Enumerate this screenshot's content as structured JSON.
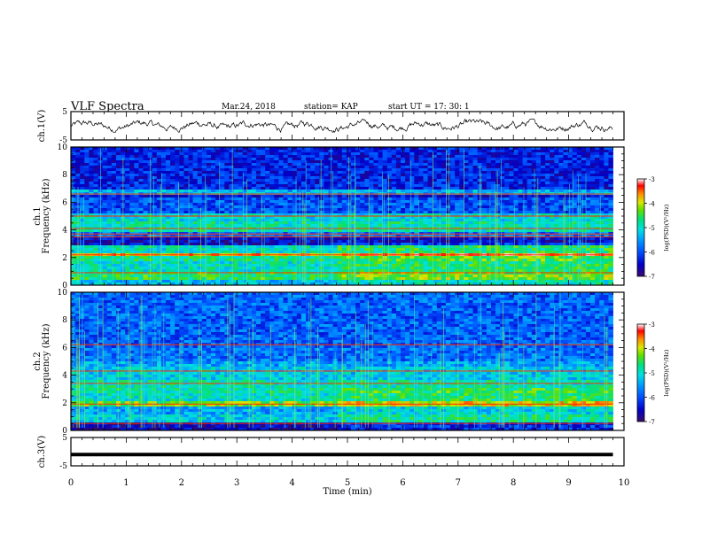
{
  "header": {
    "title": "VLF Spectra",
    "date": "Mar.24, 2018",
    "station": "station= KAP",
    "start": "start  UT  =   17: 30: 1"
  },
  "colorbar_colors": [
    "#3b0a6b",
    "#0000c8",
    "#0050ff",
    "#00a0ff",
    "#00e0e0",
    "#00e080",
    "#60e000",
    "#d8e800",
    "#ff8800",
    "#ff0000",
    "#ffffff"
  ],
  "chart_data": [
    {
      "type": "line",
      "name": "ch.1 waveform",
      "ylabel": "ch.1(V)",
      "ylim": [
        -5,
        5
      ],
      "yticks": [
        "5",
        "-5"
      ],
      "xlim": [
        0,
        10
      ],
      "note_values": "noisy waveform centred near 0 V, amplitude about +/-1.5 V"
    },
    {
      "type": "heatmap",
      "name": "ch.1 spectrogram",
      "ylabel": "ch.1\nFrequency (kHz)",
      "ylim": [
        0,
        10
      ],
      "yticks": [
        "0",
        "2",
        "4",
        "6",
        "8",
        "10"
      ],
      "xlim": [
        0,
        10
      ],
      "data_end_min": 9.8,
      "bands": [
        {
          "from": 0.0,
          "to": 0.4,
          "level": -5.3
        },
        {
          "from": 0.4,
          "to": 1.0,
          "level": -4.6
        },
        {
          "from": 1.0,
          "to": 1.7,
          "level": -5.0
        },
        {
          "from": 1.7,
          "to": 2.1,
          "level": -4.8
        },
        {
          "from": 2.1,
          "to": 2.4,
          "level": -3.8
        },
        {
          "from": 2.4,
          "to": 2.9,
          "level": -5.0
        },
        {
          "from": 2.9,
          "to": 3.4,
          "level": -6.5
        },
        {
          "from": 3.4,
          "to": 3.8,
          "level": -5.8
        },
        {
          "from": 3.8,
          "to": 4.6,
          "level": -4.9
        },
        {
          "from": 4.6,
          "to": 5.2,
          "level": -5.1
        },
        {
          "from": 5.2,
          "to": 6.3,
          "level": -6.0
        },
        {
          "from": 6.3,
          "to": 6.6,
          "level": -6.4
        },
        {
          "from": 6.6,
          "to": 7.0,
          "level": -5.4
        },
        {
          "from": 7.0,
          "to": 10.0,
          "level": -6.3
        }
      ],
      "lines": [
        0.9,
        2.2,
        3.5,
        3.7,
        4.1,
        5.0,
        6.6
      ],
      "colorbar": {
        "label": "log(PSD)(V²/Hz)",
        "range": [
          -7,
          -3
        ],
        "ticks": [
          "-3",
          "-4",
          "-5",
          "-6",
          "-7"
        ]
      }
    },
    {
      "type": "heatmap",
      "name": "ch.2 spectrogram",
      "ylabel": "ch.2\nFrequency (kHz)",
      "ylim": [
        0,
        10
      ],
      "yticks": [
        "0",
        "2",
        "4",
        "6",
        "8",
        "10"
      ],
      "xlim": [
        0,
        10
      ],
      "data_end_min": 9.8,
      "bands": [
        {
          "from": 0.0,
          "to": 0.5,
          "level": -6.6
        },
        {
          "from": 0.5,
          "to": 1.2,
          "level": -5.2
        },
        {
          "from": 1.2,
          "to": 1.8,
          "level": -5.5
        },
        {
          "from": 1.8,
          "to": 2.1,
          "level": -4.3
        },
        {
          "from": 2.1,
          "to": 2.7,
          "level": -5.0
        },
        {
          "from": 2.7,
          "to": 3.6,
          "level": -4.9
        },
        {
          "from": 3.6,
          "to": 4.6,
          "level": -5.2
        },
        {
          "from": 4.6,
          "to": 5.0,
          "level": -5.5
        },
        {
          "from": 5.0,
          "to": 6.0,
          "level": -5.8
        },
        {
          "from": 6.0,
          "to": 10.0,
          "level": -5.9
        }
      ],
      "lines": [
        0.5,
        1.9,
        3.4,
        4.3,
        6.2
      ],
      "colorbar": {
        "label": "log(PSD)(V²/Hz)",
        "range": [
          -7,
          -3
        ],
        "ticks": [
          "-3",
          "-4",
          "-5",
          "-6",
          "-7"
        ]
      }
    },
    {
      "type": "line",
      "name": "ch.3 waveform",
      "ylabel": "ch.3(V)",
      "ylim": [
        -5,
        5
      ],
      "yticks": [
        "5",
        "-5"
      ],
      "xlim": [
        0,
        10
      ],
      "note_values": "flat at about -1 V from 0 to 9.8 min"
    }
  ],
  "x_axis": {
    "label": "Time  (min)",
    "ticks": [
      "0",
      "1",
      "2",
      "3",
      "4",
      "5",
      "6",
      "7",
      "8",
      "9",
      "10"
    ],
    "range": [
      0,
      10
    ]
  }
}
